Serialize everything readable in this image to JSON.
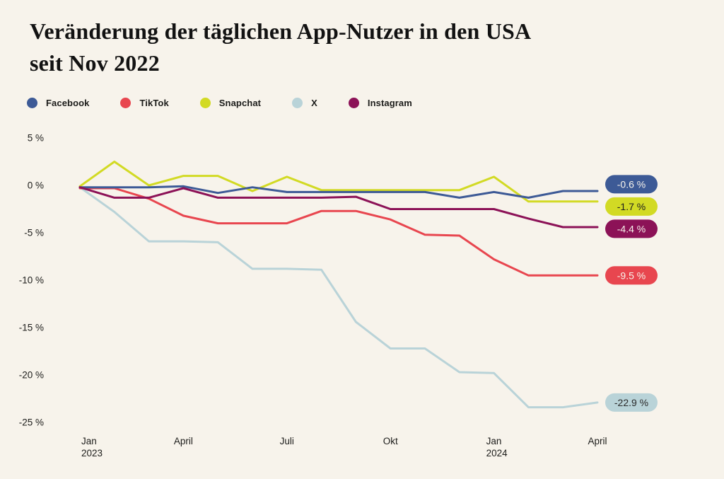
{
  "page": {
    "background_color": "#f7f3eb"
  },
  "title": {
    "text": "Veränderung der täglichen App-Nutzer in den USA seit Nov 2022",
    "lines": [
      "Veränderung der täglichen App-Nutzer in den USA",
      "seit Nov 2022"
    ]
  },
  "legend": [
    {
      "label": "Facebook",
      "color": "#3d5a96"
    },
    {
      "label": "TikTok",
      "color": "#e8464f"
    },
    {
      "label": "Snapchat",
      "color": "#d2da24"
    },
    {
      "label": "X",
      "color": "#b9d3d8"
    },
    {
      "label": "Instagram",
      "color": "#8c1257"
    }
  ],
  "chart_data": {
    "type": "line",
    "title": "Veränderung der täglichen App-Nutzer in den USA seit Nov 2022",
    "x": [
      "Jan 2023",
      "Feb 2023",
      "Mär 2023",
      "Apr 2023",
      "Mai 2023",
      "Jun 2023",
      "Jul 2023",
      "Aug 2023",
      "Sep 2023",
      "Okt 2023",
      "Nov 2023",
      "Dez 2023",
      "Jan 2024",
      "Feb 2024",
      "Mär 2024",
      "Apr 2024"
    ],
    "x_ticks": [
      {
        "index": 0,
        "lines": [
          "Jan",
          "2023"
        ]
      },
      {
        "index": 3,
        "lines": [
          "April"
        ]
      },
      {
        "index": 6,
        "lines": [
          "Juli"
        ]
      },
      {
        "index": 9,
        "lines": [
          "Okt"
        ]
      },
      {
        "index": 12,
        "lines": [
          "Jan",
          "2024"
        ]
      },
      {
        "index": 15,
        "lines": [
          "April"
        ]
      }
    ],
    "y_ticks": [
      5,
      0,
      -5,
      -10,
      -15,
      -20,
      -25
    ],
    "y_tick_suffix": " %",
    "ylim": [
      -25,
      5
    ],
    "grid": false,
    "legend_position": "top",
    "series": [
      {
        "name": "Facebook",
        "color": "#3d5a96",
        "end_label": "-0.6 %",
        "end_value": -0.6,
        "label_text_color": "#f7f3eb",
        "values": [
          -0.2,
          -0.2,
          -0.2,
          -0.1,
          -0.8,
          -0.2,
          -0.7,
          -0.7,
          -0.7,
          -0.7,
          -0.7,
          -1.3,
          -0.7,
          -1.3,
          -0.6,
          -0.6
        ]
      },
      {
        "name": "TikTok",
        "color": "#e8464f",
        "end_label": "-9.5 %",
        "end_value": -9.5,
        "label_text_color": "#f7f3eb",
        "values": [
          -0.3,
          -0.3,
          -1.4,
          -3.2,
          -4.0,
          -4.0,
          -4.0,
          -2.7,
          -2.7,
          -3.6,
          -5.2,
          -5.3,
          -7.8,
          -9.5,
          -9.5,
          -9.5
        ]
      },
      {
        "name": "Snapchat",
        "color": "#d2da24",
        "end_label": "-1.7 %",
        "end_value": -1.7,
        "label_text_color": "#1f1f1f",
        "values": [
          -0.1,
          2.5,
          0.0,
          1.0,
          1.0,
          -0.6,
          0.9,
          -0.5,
          -0.5,
          -0.5,
          -0.5,
          -0.5,
          0.9,
          -1.7,
          -1.7,
          -1.7
        ]
      },
      {
        "name": "X",
        "color": "#b9d3d8",
        "end_label": "-22.9 %",
        "end_value": -22.9,
        "label_text_color": "#2a2a2a",
        "values": [
          -0.2,
          -2.8,
          -5.9,
          -5.9,
          -6.0,
          -8.8,
          -8.8,
          -8.9,
          -14.4,
          -17.2,
          -17.2,
          -19.7,
          -19.8,
          -23.4,
          -23.4,
          -22.9
        ]
      },
      {
        "name": "Instagram",
        "color": "#8c1257",
        "end_label": "-4.4 %",
        "end_value": -4.4,
        "label_text_color": "#f7f3eb",
        "values": [
          -0.2,
          -1.3,
          -1.3,
          -0.3,
          -1.3,
          -1.3,
          -1.3,
          -1.3,
          -1.2,
          -2.5,
          -2.5,
          -2.5,
          -2.5,
          -3.5,
          -4.4,
          -4.4
        ]
      }
    ],
    "draw_order": [
      "Snapchat",
      "X",
      "TikTok",
      "Facebook",
      "Instagram"
    ]
  }
}
